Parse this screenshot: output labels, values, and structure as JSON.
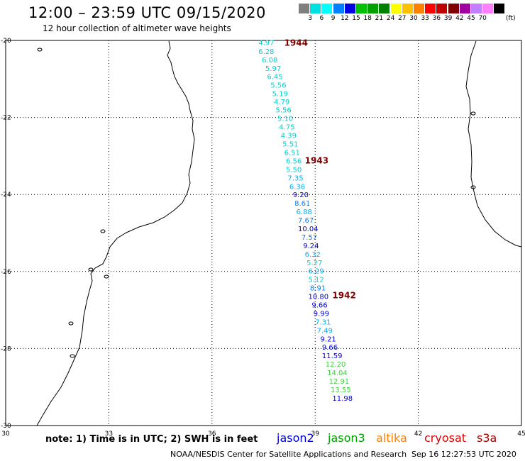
{
  "header": {
    "title": "12:00 – 23:59 UTC 09/15/2020",
    "subtitle": "12 hour collection of altimeter wave heights"
  },
  "legend": {
    "unit": "(ft)",
    "items": [
      {
        "label": "",
        "color": "#7f7f7f"
      },
      {
        "label": "3",
        "color": "#00e0e0"
      },
      {
        "label": "6",
        "color": "#00ffff"
      },
      {
        "label": "9",
        "color": "#0080ff"
      },
      {
        "label": "12",
        "color": "#0000e0"
      },
      {
        "label": "15",
        "color": "#00c000"
      },
      {
        "label": "18",
        "color": "#00a000"
      },
      {
        "label": "21",
        "color": "#008000"
      },
      {
        "label": "24",
        "color": "#ffff00"
      },
      {
        "label": "27",
        "color": "#ffc000"
      },
      {
        "label": "30",
        "color": "#ff8000"
      },
      {
        "label": "33",
        "color": "#ff0000"
      },
      {
        "label": "36",
        "color": "#c00000"
      },
      {
        "label": "39",
        "color": "#800000"
      },
      {
        "label": "42",
        "color": "#a000a0"
      },
      {
        "label": "45",
        "color": "#c080ff"
      },
      {
        "label": "70",
        "color": "#ff80ff"
      },
      {
        "label": "",
        "color": "#000000"
      }
    ]
  },
  "map": {
    "lon_range": [
      30,
      45
    ],
    "lat_range": [
      -30,
      -20
    ],
    "lon_ticks": [
      "30",
      "33",
      "36",
      "39",
      "42",
      "45"
    ],
    "lat_ticks": [
      "-20",
      "-22",
      "-24",
      "-26",
      "-28",
      "-30"
    ],
    "grid": true,
    "pass_labels": [
      {
        "text": "1944",
        "lon": 38.1,
        "lat": -20.05
      },
      {
        "text": "1943",
        "lon": 38.7,
        "lat": -23.1
      },
      {
        "text": "1942",
        "lon": 39.5,
        "lat": -26.6
      }
    ],
    "observations": [
      {
        "v": "4.97",
        "lon": 37.35,
        "lat": -20.05,
        "color": "#00d0d0"
      },
      {
        "v": "6.28",
        "lon": 37.35,
        "lat": -20.28,
        "color": "#00d0d0"
      },
      {
        "v": "6.08",
        "lon": 37.45,
        "lat": -20.5,
        "color": "#00d0d0"
      },
      {
        "v": "5.97",
        "lon": 37.55,
        "lat": -20.72,
        "color": "#00d0d0"
      },
      {
        "v": "6.45",
        "lon": 37.6,
        "lat": -20.93,
        "color": "#00d0d0"
      },
      {
        "v": "5.56",
        "lon": 37.7,
        "lat": -21.15,
        "color": "#00d0d0"
      },
      {
        "v": "5.19",
        "lon": 37.75,
        "lat": -21.37,
        "color": "#00d0d0"
      },
      {
        "v": "4.79",
        "lon": 37.8,
        "lat": -21.58,
        "color": "#00d0d0"
      },
      {
        "v": "5.56",
        "lon": 37.85,
        "lat": -21.8,
        "color": "#00d0d0"
      },
      {
        "v": "5.10",
        "lon": 37.9,
        "lat": -22.02,
        "color": "#00d0d0"
      },
      {
        "v": "4.75",
        "lon": 37.95,
        "lat": -22.24,
        "color": "#00d0d0"
      },
      {
        "v": "4.39",
        "lon": 38.0,
        "lat": -22.46,
        "color": "#00d0d0"
      },
      {
        "v": "5.51",
        "lon": 38.05,
        "lat": -22.68,
        "color": "#00d0d0"
      },
      {
        "v": "6.51",
        "lon": 38.1,
        "lat": -22.9,
        "color": "#00d0d0"
      },
      {
        "v": "6.56",
        "lon": 38.15,
        "lat": -23.12,
        "color": "#00d0d0"
      },
      {
        "v": "5.50",
        "lon": 38.15,
        "lat": -23.34,
        "color": "#00d0d0"
      },
      {
        "v": "7.35",
        "lon": 38.2,
        "lat": -23.56,
        "color": "#00b0ff"
      },
      {
        "v": "6.36",
        "lon": 38.25,
        "lat": -23.78,
        "color": "#00b0ff"
      },
      {
        "v": "9.20",
        "lon": 38.35,
        "lat": -24.0,
        "color": "#0000d0"
      },
      {
        "v": "8.61",
        "lon": 38.4,
        "lat": -24.22,
        "color": "#0080ff"
      },
      {
        "v": "6.88",
        "lon": 38.45,
        "lat": -24.44,
        "color": "#00b0ff"
      },
      {
        "v": "7.67",
        "lon": 38.5,
        "lat": -24.66,
        "color": "#0080ff"
      },
      {
        "v": "10.04",
        "lon": 38.5,
        "lat": -24.88,
        "color": "#0000d0"
      },
      {
        "v": "7.57",
        "lon": 38.6,
        "lat": -25.1,
        "color": "#0080ff"
      },
      {
        "v": "9.24",
        "lon": 38.65,
        "lat": -25.32,
        "color": "#0000d0"
      },
      {
        "v": "6.32",
        "lon": 38.7,
        "lat": -25.54,
        "color": "#00b0ff"
      },
      {
        "v": "5.27",
        "lon": 38.75,
        "lat": -25.76,
        "color": "#00d0d0"
      },
      {
        "v": "6.29",
        "lon": 38.8,
        "lat": -25.98,
        "color": "#00b0ff"
      },
      {
        "v": "5.12",
        "lon": 38.8,
        "lat": -26.2,
        "color": "#00d0d0"
      },
      {
        "v": "8.91",
        "lon": 38.85,
        "lat": -26.42,
        "color": "#0080ff"
      },
      {
        "v": "10.80",
        "lon": 38.8,
        "lat": -26.64,
        "color": "#0000d0"
      },
      {
        "v": "9.66",
        "lon": 38.9,
        "lat": -26.86,
        "color": "#0000d0"
      },
      {
        "v": "9.99",
        "lon": 38.95,
        "lat": -27.08,
        "color": "#0000d0"
      },
      {
        "v": "7.31",
        "lon": 39.0,
        "lat": -27.3,
        "color": "#00b0ff"
      },
      {
        "v": "7.49",
        "lon": 39.05,
        "lat": -27.52,
        "color": "#00b0ff"
      },
      {
        "v": "9.21",
        "lon": 39.15,
        "lat": -27.74,
        "color": "#0000d0"
      },
      {
        "v": "9.66",
        "lon": 39.2,
        "lat": -27.96,
        "color": "#0000d0"
      },
      {
        "v": "11.59",
        "lon": 39.2,
        "lat": -28.18,
        "color": "#0000d0"
      },
      {
        "v": "12.20",
        "lon": 39.3,
        "lat": -28.4,
        "color": "#40d040"
      },
      {
        "v": "14.04",
        "lon": 39.35,
        "lat": -28.62,
        "color": "#40d040"
      },
      {
        "v": "12.91",
        "lon": 39.4,
        "lat": -28.84,
        "color": "#40d040"
      },
      {
        "v": "13.55",
        "lon": 39.45,
        "lat": -29.06,
        "color": "#40d040"
      },
      {
        "v": "11.98",
        "lon": 39.5,
        "lat": -29.28,
        "color": "#0000d0"
      }
    ]
  },
  "note": "note:  1) Time is in UTC;  2) SWH is in feet",
  "satellites": [
    {
      "name": "jason2",
      "color": "#0000d0"
    },
    {
      "name": "jason3",
      "color": "#00a000"
    },
    {
      "name": "altika",
      "color": "#ff8000"
    },
    {
      "name": "cryosat",
      "color": "#e00000"
    },
    {
      "name": "s3a",
      "color": "#a00000"
    }
  ],
  "footer": "NOAA/NESDIS Center for Satellite Applications and Research",
  "footer_time": "Sep 16 12:27:53 UTC 2020"
}
